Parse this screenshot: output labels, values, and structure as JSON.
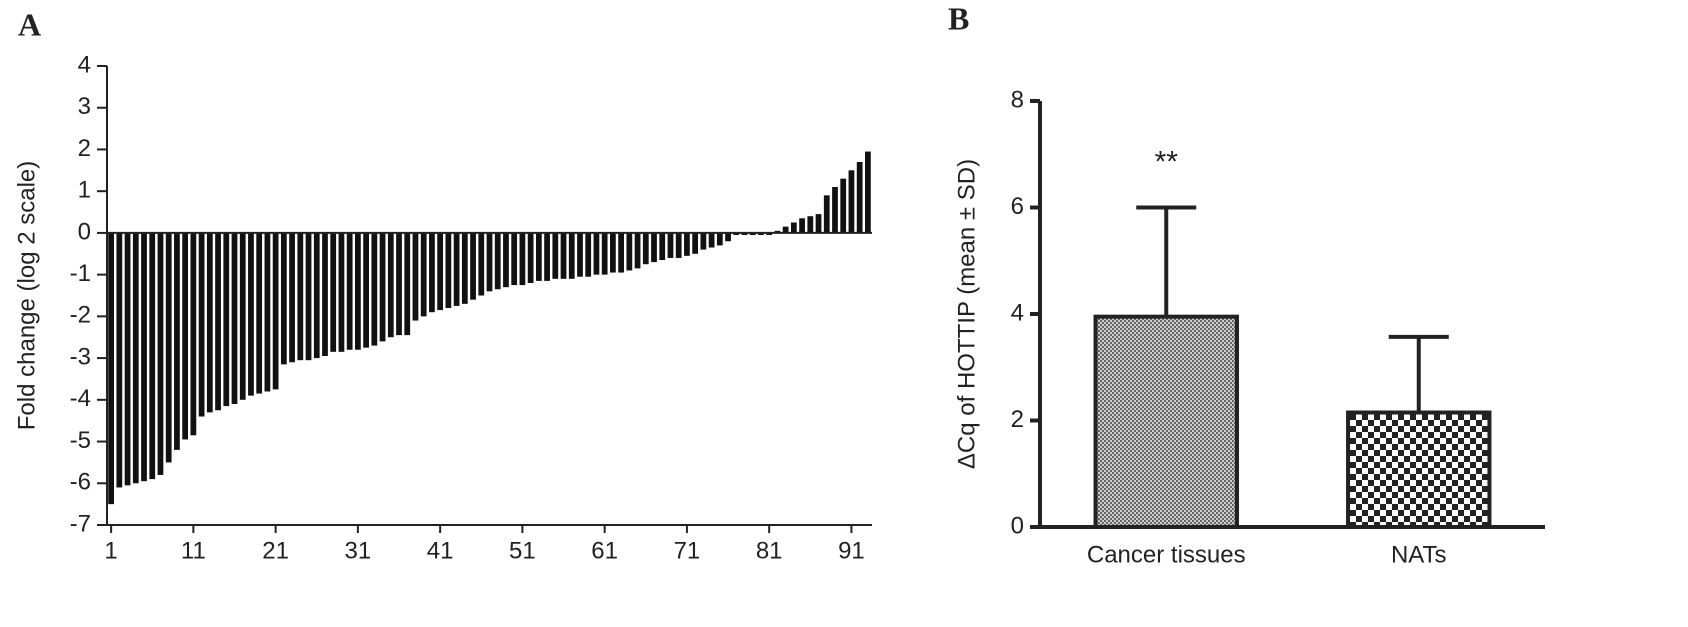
{
  "chart_data": [
    {
      "type": "bar",
      "label": "A",
      "ylabel": "Fold change (log 2 scale)",
      "categories": [
        1,
        null,
        null,
        null,
        null,
        null,
        null,
        null,
        null,
        null,
        11,
        null,
        null,
        null,
        null,
        null,
        null,
        null,
        null,
        null,
        21,
        null,
        null,
        null,
        null,
        null,
        null,
        null,
        null,
        null,
        31,
        null,
        null,
        null,
        null,
        null,
        null,
        null,
        null,
        null,
        41,
        null,
        null,
        null,
        null,
        null,
        null,
        null,
        null,
        null,
        51,
        null,
        null,
        null,
        null,
        null,
        null,
        null,
        null,
        null,
        61,
        null,
        null,
        null,
        null,
        null,
        null,
        null,
        null,
        null,
        71,
        null,
        null,
        null,
        null,
        null,
        null,
        null,
        null,
        null,
        81,
        null,
        null,
        null,
        null,
        null,
        null,
        null,
        null,
        null,
        91,
        null,
        null
      ],
      "values": [
        -6.5,
        -6.1,
        -6.05,
        -6.0,
        -5.95,
        -5.9,
        -5.8,
        -5.5,
        -5.2,
        -4.95,
        -4.85,
        -4.4,
        -4.3,
        -4.25,
        -4.15,
        -4.1,
        -4.0,
        -3.9,
        -3.85,
        -3.8,
        -3.75,
        -3.15,
        -3.1,
        -3.05,
        -3.05,
        -3.0,
        -2.95,
        -2.85,
        -2.85,
        -2.8,
        -2.8,
        -2.75,
        -2.7,
        -2.6,
        -2.5,
        -2.45,
        -2.45,
        -2.1,
        -2.0,
        -1.9,
        -1.85,
        -1.8,
        -1.75,
        -1.7,
        -1.6,
        -1.5,
        -1.4,
        -1.35,
        -1.3,
        -1.25,
        -1.25,
        -1.2,
        -1.15,
        -1.15,
        -1.1,
        -1.1,
        -1.1,
        -1.05,
        -1.05,
        -1.0,
        -1.0,
        -0.95,
        -0.95,
        -0.9,
        -0.85,
        -0.75,
        -0.7,
        -0.65,
        -0.6,
        -0.6,
        -0.55,
        -0.5,
        -0.4,
        -0.35,
        -0.3,
        -0.2,
        -0.05,
        -0.05,
        -0.05,
        -0.05,
        -0.05,
        0.05,
        0.15,
        0.25,
        0.35,
        0.4,
        0.45,
        0.9,
        1.1,
        1.3,
        1.5,
        1.7,
        1.95
      ],
      "color": "#111",
      "ylim": [
        -7,
        4
      ],
      "yticks": [
        -7,
        -6,
        -5,
        -4,
        -3,
        -2,
        -1,
        0,
        1,
        2,
        3,
        4
      ]
    },
    {
      "type": "bar",
      "label": "B",
      "ylabel": "ΔCq of HOTTIP (mean ± SD)",
      "categories": [
        "Cancer tissues",
        "NATs"
      ],
      "values": [
        3.95,
        2.15
      ],
      "errors": [
        2.05,
        1.42
      ],
      "annotations": [
        "**",
        null
      ],
      "color": "#222",
      "ylim": [
        0,
        8
      ],
      "yticks": [
        0,
        2,
        4,
        6,
        8
      ]
    }
  ]
}
